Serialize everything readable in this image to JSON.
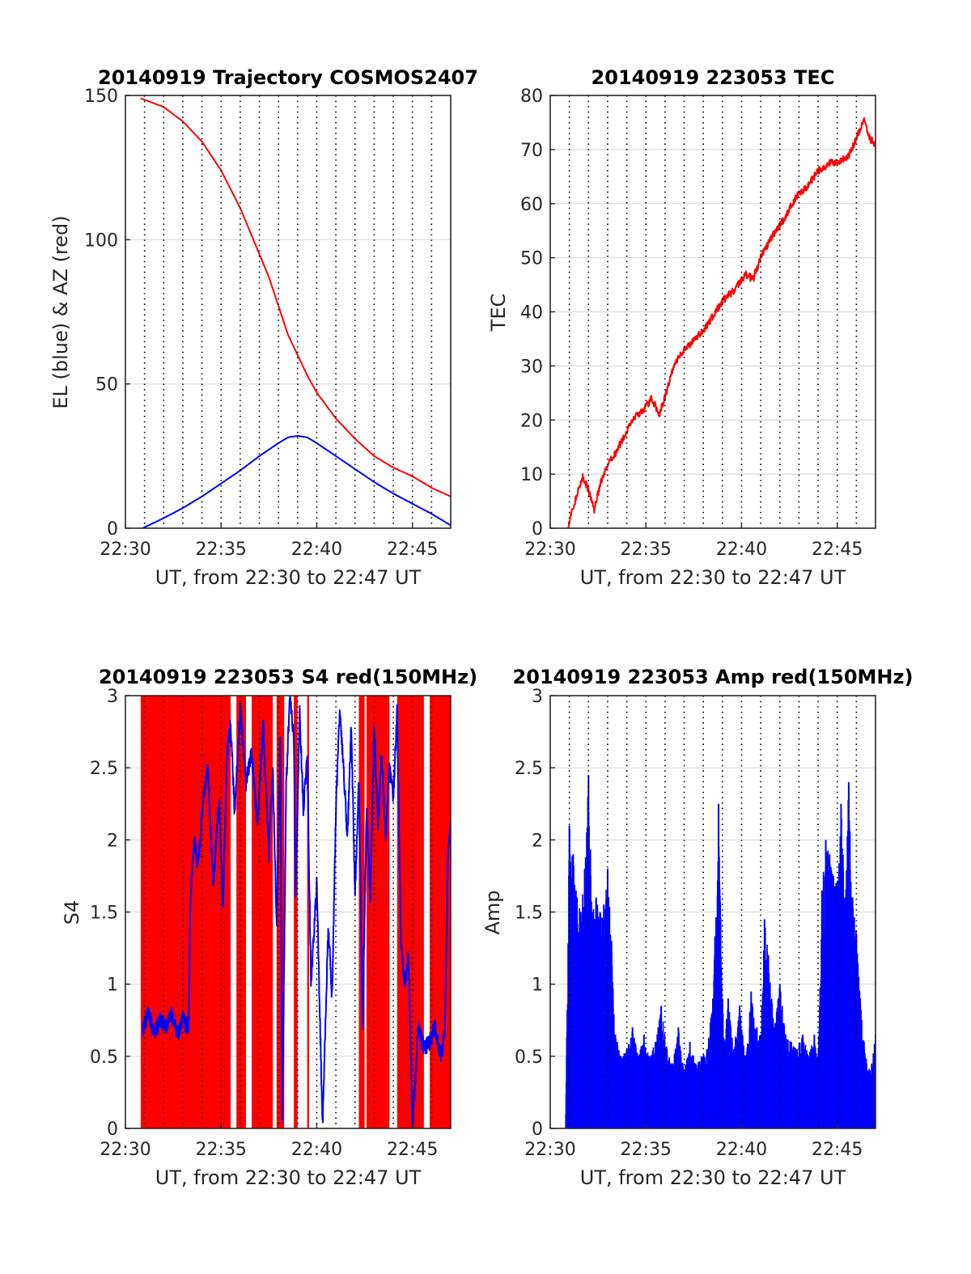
{
  "colors": {
    "el": "#0000ff",
    "az": "#ff0000",
    "tec": "#ff0000",
    "s4_red": "#ff0000",
    "s4_blue": "#0000ff",
    "amp": "#0000ff",
    "grid_v": "#000000",
    "grid_h": "#dcdcdc",
    "axes": "#262626"
  },
  "chart_data": [
    {
      "type": "line",
      "title": "20140919 Trajectory COSMOS2407",
      "xlabel": "UT, from 22:30 to 22:47 UT",
      "ylabel": "EL (blue) & AZ (red)",
      "xlim": [
        0,
        17
      ],
      "ylim": [
        0,
        150
      ],
      "x_ticks": [
        0,
        5,
        10,
        15
      ],
      "x_tick_labels": [
        "22:30",
        "22:35",
        "22:40",
        "22:45"
      ],
      "y_ticks": [
        0,
        50,
        100,
        150
      ],
      "y_tick_labels": [
        "0",
        "50",
        "100",
        "150"
      ],
      "grid": "dotted vertical every minute, light horizontal at y ticks",
      "series": [
        {
          "name": "AZ (red)",
          "color": "#ff0000",
          "x": [
            0.8,
            2,
            3,
            4,
            5,
            6,
            7,
            7.5,
            8,
            8.5,
            9,
            9.5,
            10,
            11,
            12,
            13,
            14,
            15,
            16,
            17
          ],
          "y": [
            149,
            146,
            141,
            134,
            124,
            111,
            95,
            87,
            77,
            67,
            60,
            53,
            47,
            38,
            31,
            25,
            21,
            18,
            14,
            11
          ]
        },
        {
          "name": "EL (blue)",
          "color": "#0000ff",
          "x": [
            0.9,
            2,
            3,
            4,
            5,
            6,
            7,
            8,
            8.5,
            9,
            9.5,
            10,
            11,
            12,
            13,
            14,
            15,
            16,
            17
          ],
          "y": [
            0,
            3.5,
            7,
            11,
            15.5,
            20,
            25,
            29.5,
            31.5,
            32,
            31.5,
            29.5,
            25,
            20.5,
            16,
            12,
            8.5,
            5,
            1
          ]
        }
      ]
    },
    {
      "type": "line",
      "title": "20140919 223053 TEC",
      "xlabel": "UT, from 22:30 to 22:47 UT",
      "ylabel": "TEC",
      "xlim": [
        0,
        17
      ],
      "ylim": [
        0,
        80
      ],
      "x_ticks": [
        0,
        5,
        10,
        15
      ],
      "x_tick_labels": [
        "22:30",
        "22:35",
        "22:40",
        "22:45"
      ],
      "y_ticks": [
        0,
        10,
        20,
        30,
        40,
        50,
        60,
        70,
        80
      ],
      "y_tick_labels": [
        "0",
        "10",
        "20",
        "30",
        "40",
        "50",
        "60",
        "70",
        "80"
      ],
      "series": [
        {
          "name": "TEC",
          "color": "#ff0000",
          "x": [
            0.9,
            1.3,
            1.7,
            2.0,
            2.3,
            2.6,
            3.0,
            3.5,
            4.0,
            4.4,
            4.9,
            5.3,
            5.7,
            6.1,
            6.5,
            7.0,
            7.6,
            8.3,
            9.0,
            9.6,
            10.2,
            10.6,
            11.0,
            11.6,
            12.2,
            12.8,
            13.4,
            14.0,
            14.6,
            15.2,
            15.6,
            16.0,
            16.4,
            16.7,
            17.0
          ],
          "y": [
            0,
            5,
            9.5,
            7,
            3.5,
            8,
            11.5,
            14.5,
            18,
            20.5,
            22,
            24,
            21,
            25.5,
            30.5,
            33,
            35,
            38,
            42,
            44,
            47,
            46,
            50,
            54,
            57,
            61,
            63,
            66,
            67.5,
            68,
            69,
            72,
            75.5,
            72,
            71
          ]
        }
      ]
    },
    {
      "type": "line",
      "title": "20140919 223053 S4 red(150MHz)",
      "xlabel": "UT, from 22:30 to 22:47 UT",
      "ylabel": "S4",
      "xlim": [
        0,
        17
      ],
      "ylim": [
        0,
        3
      ],
      "x_ticks": [
        0,
        5,
        10,
        15
      ],
      "x_tick_labels": [
        "22:30",
        "22:35",
        "22:40",
        "22:45"
      ],
      "y_ticks": [
        0,
        0.5,
        1,
        1.5,
        2,
        2.5,
        3
      ],
      "y_tick_labels": [
        "0",
        "0.5",
        "1",
        "1.5",
        "2",
        "2.5",
        "3"
      ],
      "red_fill_x_ranges": [
        [
          0.8,
          5.5
        ],
        [
          5.8,
          6.3
        ],
        [
          6.6,
          7.7
        ],
        [
          7.9,
          8.3
        ],
        [
          8.8,
          9.0
        ],
        [
          9.5,
          9.6
        ],
        [
          12.2,
          12.5
        ],
        [
          12.6,
          13.8
        ],
        [
          14.2,
          15.6
        ],
        [
          15.9,
          17.0
        ]
      ],
      "series": [
        {
          "name": "blue",
          "color": "#0000ff",
          "x": [
            0.9,
            1.2,
            1.5,
            1.8,
            2.1,
            2.4,
            2.7,
            3.0,
            3.3,
            3.4,
            3.6,
            3.8,
            4.0,
            4.3,
            4.6,
            4.9,
            5.1,
            5.3,
            5.5,
            5.7,
            6.0,
            6.3,
            6.6,
            6.9,
            7.2,
            7.5,
            7.7,
            7.9,
            8.1,
            8.2,
            8.4,
            8.6,
            8.8,
            8.9,
            9.1,
            9.3,
            9.5,
            9.7,
            10.0,
            10.3,
            10.6,
            10.8,
            11.0,
            11.2,
            11.4,
            11.6,
            11.8,
            12.0,
            12.2,
            12.4,
            12.6,
            12.8,
            13.0,
            13.2,
            13.4,
            13.6,
            13.8,
            14.0,
            14.2,
            14.4,
            14.6,
            14.8,
            15.0,
            15.3,
            15.6,
            15.9,
            16.2,
            16.5,
            16.7,
            16.85,
            17.0
          ],
          "y": [
            0.7,
            0.8,
            0.65,
            0.75,
            0.7,
            0.8,
            0.65,
            0.75,
            0.7,
            1.6,
            2.0,
            1.8,
            2.2,
            2.5,
            1.7,
            2.3,
            1.5,
            2.6,
            2.8,
            2.2,
            2.9,
            2.4,
            2.6,
            2.1,
            2.8,
            1.9,
            2.5,
            1.4,
            2.7,
            0.0,
            2.4,
            3.0,
            2.7,
            1.6,
            2.9,
            2.2,
            2.6,
            1.0,
            1.7,
            0.0,
            1.4,
            0.9,
            2.2,
            2.9,
            2.5,
            2.0,
            2.8,
            1.6,
            2.4,
            0.7,
            2.2,
            1.6,
            2.8,
            2.1,
            2.6,
            2.0,
            2.5,
            2.3,
            2.9,
            1.3,
            1.0,
            1.2,
            0.0,
            0.7,
            0.55,
            0.6,
            0.7,
            0.5,
            0.65,
            1.9,
            2.1
          ]
        }
      ]
    },
    {
      "type": "line",
      "title": "20140919 223053 Amp red(150MHz)",
      "xlabel": "UT, from 22:30 to 22:47 UT",
      "ylabel": "Amp",
      "xlim": [
        0,
        17
      ],
      "ylim": [
        0,
        3
      ],
      "x_ticks": [
        0,
        5,
        10,
        15
      ],
      "x_tick_labels": [
        "22:30",
        "22:35",
        "22:40",
        "22:45"
      ],
      "y_ticks": [
        0,
        0.5,
        1,
        1.5,
        2,
        2.5,
        3
      ],
      "y_tick_labels": [
        "0",
        "0.5",
        "1",
        "1.5",
        "2",
        "2.5",
        "3"
      ],
      "envelope": {
        "name": "Amp",
        "color": "#0000ff",
        "x": [
          0.8,
          1.0,
          1.2,
          1.4,
          1.6,
          1.8,
          2.0,
          2.2,
          2.4,
          2.6,
          2.8,
          3.0,
          3.2,
          3.4,
          3.5,
          3.7,
          4.0,
          4.3,
          4.6,
          4.9,
          5.2,
          5.5,
          5.8,
          6.1,
          6.4,
          6.7,
          7.0,
          7.3,
          7.6,
          7.9,
          8.2,
          8.5,
          8.8,
          9.0,
          9.1,
          9.3,
          9.6,
          9.9,
          10.2,
          10.5,
          10.8,
          11.0,
          11.2,
          11.4,
          11.7,
          12.0,
          12.3,
          12.6,
          12.9,
          13.2,
          13.5,
          13.8,
          14.0,
          14.2,
          14.4,
          14.6,
          14.8,
          15.0,
          15.2,
          15.4,
          15.6,
          15.8,
          16.0,
          16.2,
          16.4,
          16.6,
          16.8,
          17.0
        ],
        "y": [
          0,
          2.1,
          1.9,
          1.6,
          1.5,
          1.8,
          2.45,
          1.5,
          1.6,
          1.5,
          1.55,
          1.8,
          1.3,
          0.65,
          0.6,
          0.5,
          0.55,
          0.7,
          0.5,
          0.65,
          0.5,
          0.6,
          0.85,
          0.55,
          0.45,
          0.7,
          0.4,
          0.6,
          0.45,
          0.5,
          0.55,
          0.9,
          2.25,
          0.9,
          0.6,
          0.9,
          0.55,
          0.85,
          0.5,
          0.95,
          0.7,
          0.65,
          1.45,
          1.2,
          0.7,
          1.0,
          0.65,
          0.6,
          0.55,
          0.65,
          0.5,
          0.65,
          0.5,
          1.65,
          2.0,
          1.9,
          1.75,
          1.7,
          2.25,
          1.6,
          2.4,
          1.6,
          1.35,
          0.9,
          0.6,
          0.4,
          0.45,
          0.65
        ]
      }
    }
  ]
}
